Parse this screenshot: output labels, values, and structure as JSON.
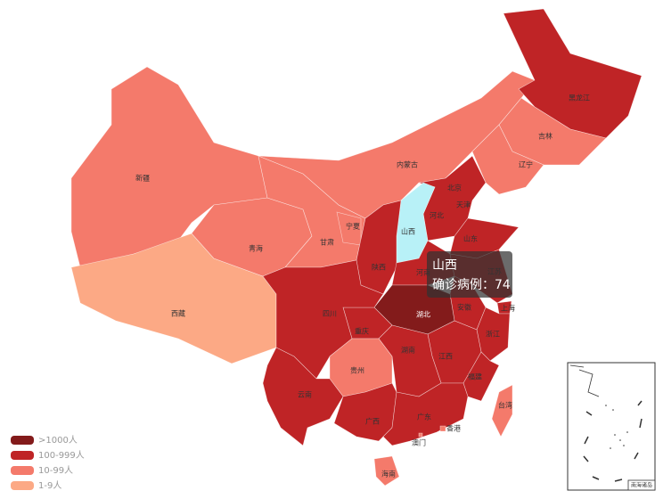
{
  "legend": [
    {
      "label": ">1000人",
      "color": "#831b1b"
    },
    {
      "label": "100-999人",
      "color": "#bf2426"
    },
    {
      "label": "10-99人",
      "color": "#f47a6b"
    },
    {
      "label": "1-9人",
      "color": "#fca985"
    }
  ],
  "highlight_color": "#b8f1f7",
  "regions": [
    {
      "name": "新疆",
      "color": "#f47a6b"
    },
    {
      "name": "西藏",
      "color": "#fca985"
    },
    {
      "name": "青海",
      "color": "#f47a6b"
    },
    {
      "name": "甘肃",
      "color": "#f47a6b"
    },
    {
      "name": "宁夏",
      "color": "#f47a6b"
    },
    {
      "name": "内蒙古",
      "color": "#f47a6b"
    },
    {
      "name": "黑龙江",
      "color": "#bf2426"
    },
    {
      "name": "吉林",
      "color": "#f47a6b"
    },
    {
      "name": "辽宁",
      "color": "#f47a6b"
    },
    {
      "name": "北京",
      "color": "#bf2426"
    },
    {
      "name": "天津",
      "color": "#f47a6b"
    },
    {
      "name": "河北",
      "color": "#bf2426"
    },
    {
      "name": "山西",
      "color": "#f47a6b"
    },
    {
      "name": "山东",
      "color": "#bf2426"
    },
    {
      "name": "陕西",
      "color": "#bf2426"
    },
    {
      "name": "河南",
      "color": "#bf2426"
    },
    {
      "name": "江苏",
      "color": "#bf2426"
    },
    {
      "name": "安徽",
      "color": "#bf2426"
    },
    {
      "name": "上海",
      "color": "#bf2426"
    },
    {
      "name": "湖北",
      "color": "#831b1b"
    },
    {
      "name": "重庆",
      "color": "#bf2426"
    },
    {
      "name": "四川",
      "color": "#bf2426"
    },
    {
      "name": "浙江",
      "color": "#bf2426"
    },
    {
      "name": "江西",
      "color": "#bf2426"
    },
    {
      "name": "湖南",
      "color": "#bf2426"
    },
    {
      "name": "福建",
      "color": "#bf2426"
    },
    {
      "name": "贵州",
      "color": "#f47a6b"
    },
    {
      "name": "云南",
      "color": "#bf2426"
    },
    {
      "name": "广西",
      "color": "#bf2426"
    },
    {
      "name": "广东",
      "color": "#bf2426"
    },
    {
      "name": "海南",
      "color": "#f47a6b"
    },
    {
      "name": "台湾",
      "color": "#f47a6b"
    },
    {
      "name": "香港",
      "color": "#f47a6b"
    },
    {
      "name": "澳门",
      "color": "#f47a6b"
    }
  ],
  "inset_label": "南海诸岛",
  "tooltip": {
    "title": "山西",
    "label": "确诊病例：",
    "value": 74
  }
}
